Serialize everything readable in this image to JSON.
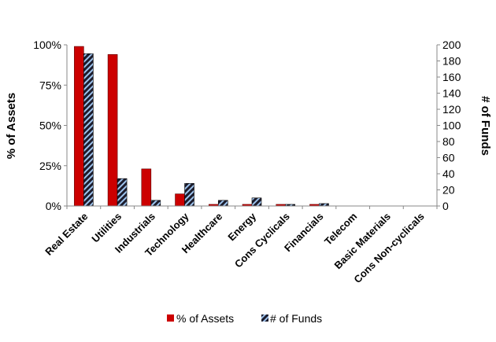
{
  "chart_data": {
    "type": "bar",
    "categories": [
      "Real Estate",
      "Utilities",
      "Industrials",
      "Technology",
      "Healthcare",
      "Energy",
      "Cons Cyclicals",
      "Financials",
      "Telecom",
      "Basic Materials",
      "Cons Non-cyclicals"
    ],
    "series": [
      {
        "name": "% of Assets",
        "axis": "left",
        "values": [
          99,
          94,
          23,
          7.5,
          1,
          1,
          1,
          1,
          0,
          0,
          0
        ],
        "color": "#cc0000"
      },
      {
        "name": "# of Funds",
        "axis": "right",
        "values": [
          189,
          34,
          7,
          28,
          7,
          10,
          2,
          3,
          0,
          0,
          0
        ],
        "color": "#1a1a2e",
        "pattern": "diagonal-hatch-lightblue"
      }
    ],
    "ylabel_left": "% of Assets",
    "ylabel_right": "# of Funds",
    "ylim_left": [
      0,
      100
    ],
    "ylim_right": [
      0,
      200
    ],
    "yticks_left": [
      "0%",
      "25%",
      "50%",
      "75%",
      "100%"
    ],
    "yticks_right": [
      "0",
      "20",
      "40",
      "60",
      "80",
      "100",
      "120",
      "140",
      "160",
      "180",
      "200"
    ],
    "grid": false,
    "legend": "bottom-center"
  }
}
